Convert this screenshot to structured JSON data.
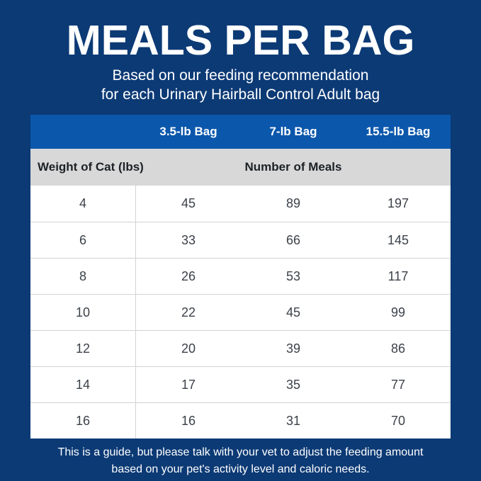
{
  "page": {
    "background_color": "#0c3a75",
    "table_header_color": "#0b57ac",
    "subheader_row_color": "#d8d8d8",
    "grid_line_color": "#d3d3d3",
    "text_color_light": "#ffffff",
    "text_color_dark": "#1d2126",
    "value_text_color": "#3b4149"
  },
  "header": {
    "title": "MEALS PER BAG",
    "subtitle_line1": "Based on our feeding recommendation",
    "subtitle_line2": "for each Urinary Hairball Control Adult bag"
  },
  "table": {
    "column_headers": [
      "",
      "3.5-lb Bag",
      "7-lb Bag",
      "15.5-lb Bag"
    ],
    "subheader": {
      "left": "Weight of Cat (lbs)",
      "right": "Number of Meals"
    },
    "rows": [
      {
        "weight": "4",
        "meals": [
          "45",
          "89",
          "197"
        ]
      },
      {
        "weight": "6",
        "meals": [
          "33",
          "66",
          "145"
        ]
      },
      {
        "weight": "8",
        "meals": [
          "26",
          "53",
          "117"
        ]
      },
      {
        "weight": "10",
        "meals": [
          "22",
          "45",
          "99"
        ]
      },
      {
        "weight": "12",
        "meals": [
          "20",
          "39",
          "86"
        ]
      },
      {
        "weight": "14",
        "meals": [
          "17",
          "35",
          "77"
        ]
      },
      {
        "weight": "16",
        "meals": [
          "16",
          "31",
          "70"
        ]
      }
    ]
  },
  "footer": {
    "line1": "This is a guide, but please talk with your vet to adjust the feeding amount",
    "line2": "based on your pet's activity level and caloric needs."
  },
  "chart_data": {
    "type": "table",
    "title": "MEALS PER BAG",
    "subtitle": "Based on our feeding recommendation for each Urinary Hairball Control Adult bag",
    "columns": [
      "Weight of Cat (lbs)",
      "3.5-lb Bag",
      "7-lb Bag",
      "15.5-lb Bag"
    ],
    "value_unit": "Number of Meals",
    "rows": [
      [
        4,
        45,
        89,
        197
      ],
      [
        6,
        33,
        66,
        145
      ],
      [
        8,
        26,
        53,
        117
      ],
      [
        10,
        22,
        45,
        99
      ],
      [
        12,
        20,
        39,
        86
      ],
      [
        14,
        17,
        35,
        77
      ],
      [
        16,
        16,
        31,
        70
      ]
    ],
    "note": "This is a guide, but please talk with your vet to adjust the feeding amount based on your pet's activity level and caloric needs."
  }
}
